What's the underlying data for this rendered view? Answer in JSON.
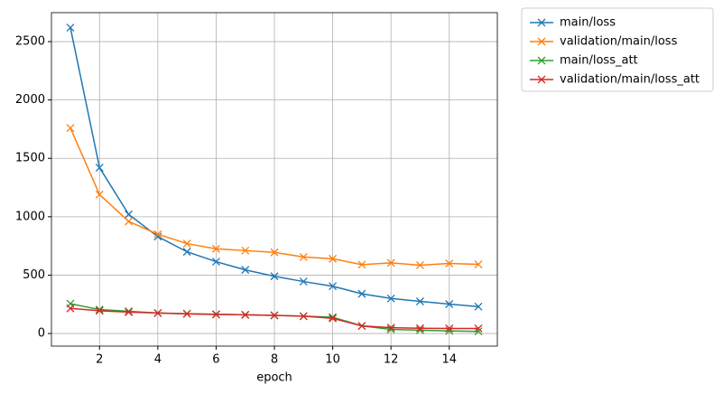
{
  "chart_data": {
    "type": "line",
    "xlabel": "epoch",
    "x": [
      1,
      2,
      3,
      4,
      5,
      6,
      7,
      8,
      9,
      10,
      11,
      12,
      13,
      14,
      15
    ],
    "series": [
      {
        "name": "main/loss",
        "color": "#1f77b4",
        "values": [
          2620,
          1420,
          1020,
          830,
          700,
          615,
          545,
          490,
          445,
          405,
          340,
          300,
          275,
          252,
          230
        ]
      },
      {
        "name": "validation/main/loss",
        "color": "#ff7f0e",
        "values": [
          1760,
          1190,
          960,
          850,
          770,
          725,
          710,
          695,
          655,
          640,
          590,
          605,
          585,
          600,
          592
        ]
      },
      {
        "name": "main/loss_att",
        "color": "#2ca02c",
        "values": [
          255,
          205,
          190,
          175,
          170,
          165,
          160,
          155,
          148,
          140,
          65,
          35,
          28,
          22,
          18
        ]
      },
      {
        "name": "validation/main/loss_att",
        "color": "#d62728",
        "values": [
          215,
          195,
          183,
          175,
          168,
          163,
          160,
          155,
          148,
          130,
          65,
          50,
          45,
          43,
          43
        ]
      }
    ],
    "xlim": [
      0.35,
      15.65
    ],
    "xticks": [
      2,
      4,
      6,
      8,
      10,
      12,
      14
    ],
    "ylim": [
      -108,
      2748
    ],
    "yticks": [
      0,
      500,
      1000,
      1500,
      2000,
      2500
    ],
    "grid": true,
    "legend": "outside upper right",
    "marker": "x"
  }
}
